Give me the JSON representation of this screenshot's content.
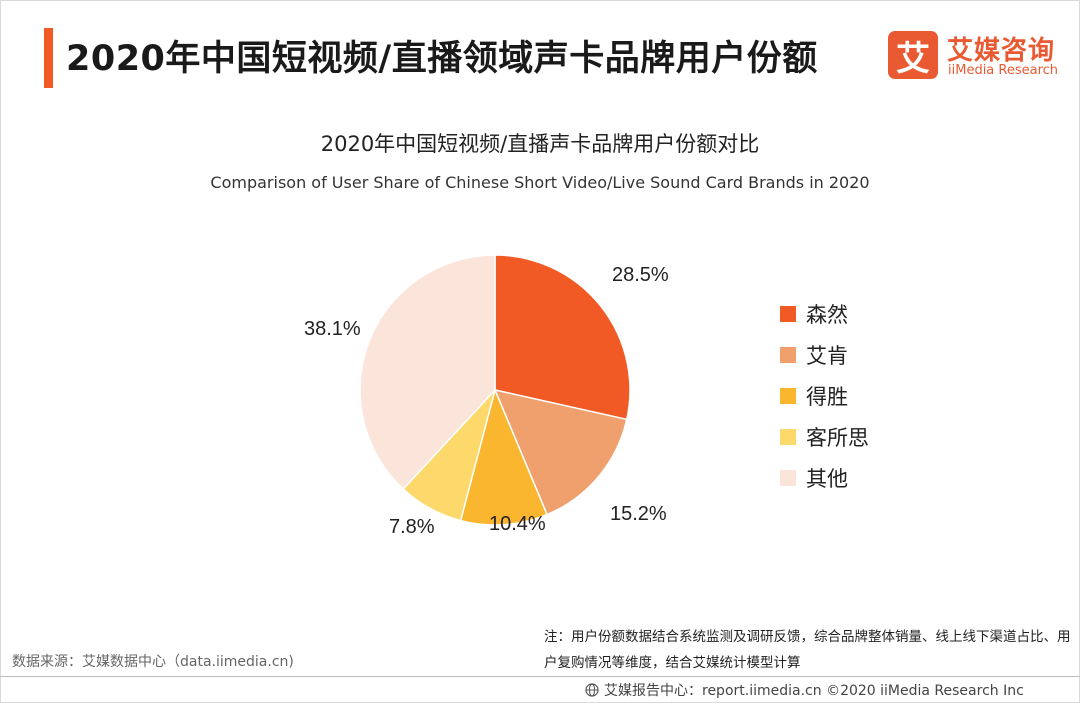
{
  "header": {
    "title": "2020年中国短视频/直播领域声卡品牌用户份额",
    "logo_mark": "艾",
    "logo_cn": "艾媒咨询",
    "logo_en": "iiMedia Research"
  },
  "chart_data": {
    "type": "pie",
    "title": "2020年中国短视频/直播声卡品牌用户份额对比",
    "subtitle": "Comparison of User Share of Chinese Short Video/Live Sound Card Brands in 2020",
    "categories": [
      "森然",
      "艾肯",
      "得胜",
      "客所思",
      "其他"
    ],
    "values": [
      28.5,
      15.2,
      10.4,
      7.8,
      38.1
    ],
    "value_labels": [
      "28.5%",
      "15.2%",
      "10.4%",
      "7.8%",
      "38.1%"
    ],
    "colors": [
      "#f15a24",
      "#f0a06c",
      "#fbb630",
      "#fdd86a",
      "#fbe5da"
    ],
    "legend_position": "right",
    "start": "12 o'clock",
    "direction": "clockwise"
  },
  "footer": {
    "source": "数据来源：艾媒数据中心（data.iimedia.cn)",
    "note": "注：用户份额数据结合系统监测及调研反馈，综合品牌整体销量、线上线下渠道占比、用户复购情况等维度，结合艾媒统计模型计算",
    "credit": "艾媒报告中心：report.iimedia.cn   ©2020  iiMedia Research  Inc"
  }
}
